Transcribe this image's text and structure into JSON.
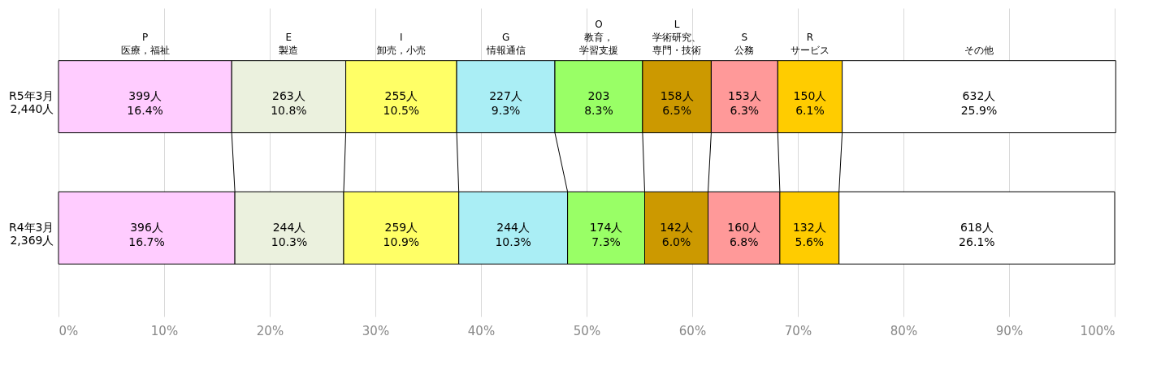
{
  "chart_data": {
    "type": "bar",
    "orientation": "horizontal",
    "stacked": true,
    "grid": "x",
    "categories": [
      "R5年3月\n2,440人",
      "R4年3月\n2,369人"
    ],
    "xlim": [
      0,
      100
    ],
    "xticks": [
      {
        "value": 0,
        "label": "0%"
      },
      {
        "value": 10,
        "label": "10%"
      },
      {
        "value": 20,
        "label": "20%"
      },
      {
        "value": 30,
        "label": "30%"
      },
      {
        "value": 40,
        "label": "40%"
      },
      {
        "value": 50,
        "label": "50%"
      },
      {
        "value": 60,
        "label": "60%"
      },
      {
        "value": 70,
        "label": "70%"
      },
      {
        "value": 80,
        "label": "80%"
      },
      {
        "value": 90,
        "label": "90%"
      },
      {
        "value": 100,
        "label": "100%"
      }
    ],
    "series": [
      {
        "name": "P\n医療，福祉",
        "color": "#ffccff",
        "values": [
          16.4,
          16.7
        ],
        "value_labels": [
          "399人\n16.4%",
          "396人\n16.7%"
        ]
      },
      {
        "name": "E\n製造",
        "color": "#ebf1de",
        "values": [
          10.8,
          10.3
        ],
        "value_labels": [
          "263人\n10.8%",
          "244人\n10.3%"
        ]
      },
      {
        "name": "I\n卸売，小売",
        "color": "#ffff66",
        "values": [
          10.5,
          10.9
        ],
        "value_labels": [
          "255人\n10.5%",
          "259人\n10.9%"
        ]
      },
      {
        "name": "G\n情報通信",
        "color": "#aaeef5",
        "values": [
          9.3,
          10.3
        ],
        "value_labels": [
          "227人\n9.3%",
          "244人\n10.3%"
        ]
      },
      {
        "name": "O\n教育，学習支援",
        "color": "#99ff66",
        "values": [
          8.3,
          7.3
        ],
        "value_labels": [
          "203\n8.3%",
          "174人\n7.3%"
        ]
      },
      {
        "name": "L\n学術研究、専門・技術",
        "color": "#cc9900",
        "values": [
          6.5,
          6.0
        ],
        "value_labels": [
          "158人\n6.5%",
          "142人\n6.0%"
        ]
      },
      {
        "name": "S\n公務",
        "color": "#ff9999",
        "values": [
          6.3,
          6.8
        ],
        "value_labels": [
          "153人\n6.3%",
          "160人\n6.8%"
        ]
      },
      {
        "name": "R\nサービス",
        "color": "#ffcc00",
        "values": [
          6.1,
          5.6
        ],
        "value_labels": [
          "150人\n6.1%",
          "132人\n5.6%"
        ]
      },
      {
        "name": "その他",
        "color": "#ffffff",
        "values": [
          25.9,
          26.1
        ],
        "value_labels": [
          "632人\n25.9%",
          "618人\n26.1%"
        ]
      }
    ]
  }
}
